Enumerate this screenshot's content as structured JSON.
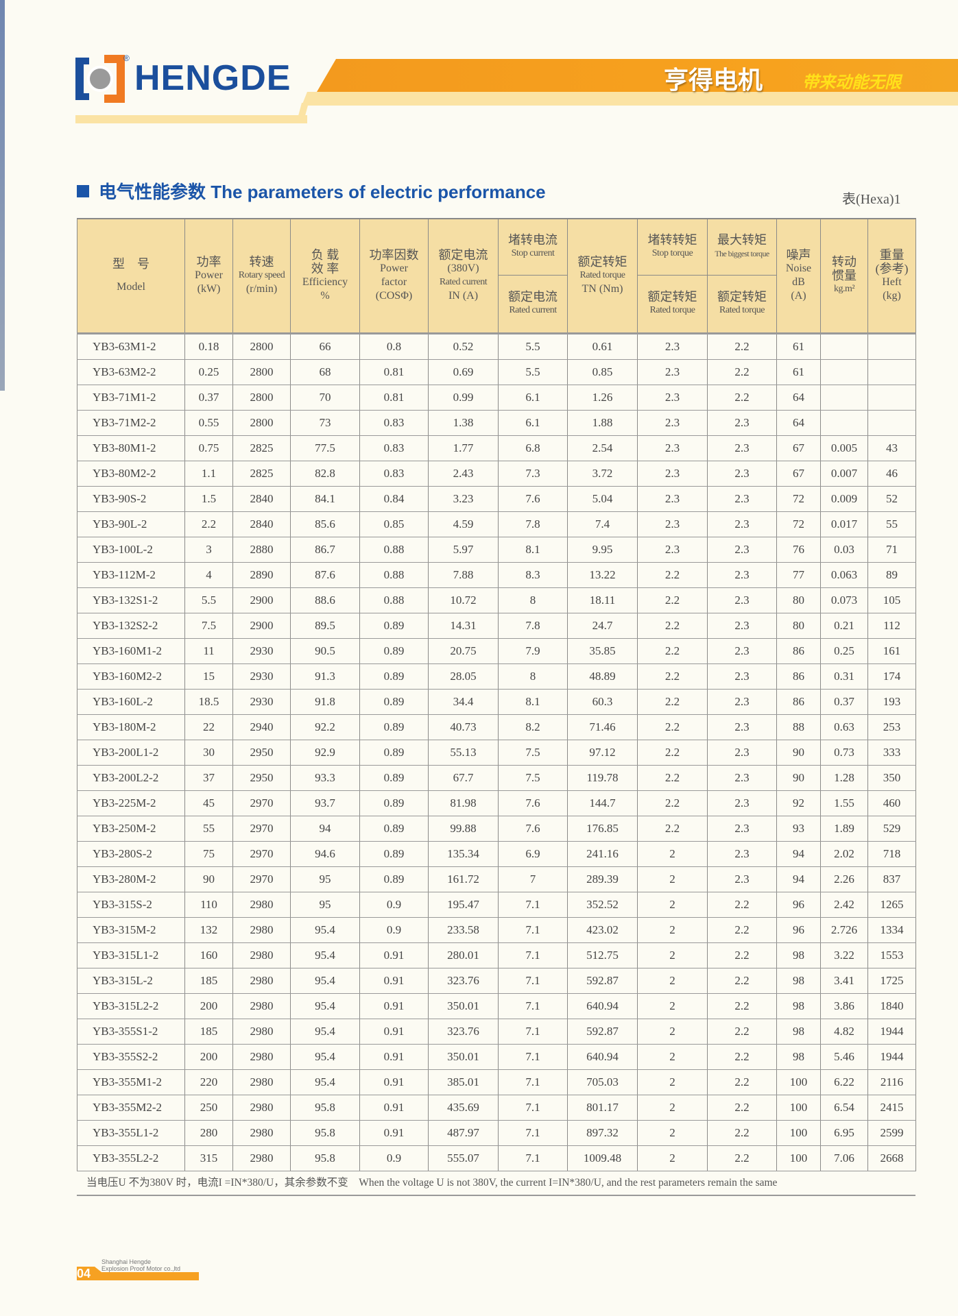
{
  "header": {
    "brand": "HENGDE",
    "registered": "®",
    "cn_brand": "亨得电机",
    "slogan": "带来动能无限",
    "colors": {
      "brand_blue": "#1b4f9c",
      "orange": "#f39a1e",
      "pale_yellow": "#fbe3a4",
      "header_fill": "#f5dea4"
    }
  },
  "section": {
    "title": "电气性能参数 The parameters of electric performance",
    "table_no": "表(Hexa)1"
  },
  "columns": {
    "model": {
      "cn": "型　号",
      "en": "Model"
    },
    "power": {
      "cn": "功率",
      "en": "Power",
      "unit": "(kW)"
    },
    "speed": {
      "cn": "转速",
      "en": "Rotary speed",
      "unit": "(r/min)"
    },
    "efficiency": {
      "cn1": "负 载",
      "cn2": "效 率",
      "en": "Efficiency",
      "unit": "%"
    },
    "pf": {
      "cn": "功率因数",
      "en1": "Power",
      "en2": "factor",
      "unit": "(COSΦ)"
    },
    "current": {
      "cn": "额定电流",
      "volt": "(380V)",
      "en": "Rated current",
      "unit": "IN (A)"
    },
    "stop_current": {
      "top_cn": "堵转电流",
      "top_en": "Stop current",
      "bot_cn": "额定电流",
      "bot_en": "Rated current"
    },
    "torque": {
      "cn": "额定转矩",
      "en": "Rated torque",
      "unit": "TN (Nm)"
    },
    "stop_torque": {
      "top_cn": "堵转转矩",
      "top_en": "Stop torque",
      "bot_cn": "额定转矩",
      "bot_en": "Rated torque"
    },
    "max_torque": {
      "top_cn": "最大转矩",
      "top_en": "The biggest torque",
      "bot_cn": "额定转矩",
      "bot_en": "Rated torque"
    },
    "noise": {
      "cn": "噪声",
      "en": "Noise",
      "unit1": "dB",
      "unit2": "(A)"
    },
    "inertia": {
      "cn1": "转动",
      "cn2": "惯量",
      "unit": "kg.m²"
    },
    "heft": {
      "cn1": "重量",
      "cn2": "(参考)",
      "en": "Heft",
      "unit": "(kg)"
    }
  },
  "rows": [
    [
      "YB3-63M1-2",
      "0.18",
      "2800",
      "66",
      "0.8",
      "0.52",
      "5.5",
      "0.61",
      "2.3",
      "2.2",
      "61",
      "",
      ""
    ],
    [
      "YB3-63M2-2",
      "0.25",
      "2800",
      "68",
      "0.81",
      "0.69",
      "5.5",
      "0.85",
      "2.3",
      "2.2",
      "61",
      "",
      ""
    ],
    [
      "YB3-71M1-2",
      "0.37",
      "2800",
      "70",
      "0.81",
      "0.99",
      "6.1",
      "1.26",
      "2.3",
      "2.2",
      "64",
      "",
      ""
    ],
    [
      "YB3-71M2-2",
      "0.55",
      "2800",
      "73",
      "0.83",
      "1.38",
      "6.1",
      "1.88",
      "2.3",
      "2.3",
      "64",
      "",
      ""
    ],
    [
      "YB3-80M1-2",
      "0.75",
      "2825",
      "77.5",
      "0.83",
      "1.77",
      "6.8",
      "2.54",
      "2.3",
      "2.3",
      "67",
      "0.005",
      "43"
    ],
    [
      "YB3-80M2-2",
      "1.1",
      "2825",
      "82.8",
      "0.83",
      "2.43",
      "7.3",
      "3.72",
      "2.3",
      "2.3",
      "67",
      "0.007",
      "46"
    ],
    [
      "YB3-90S-2",
      "1.5",
      "2840",
      "84.1",
      "0.84",
      "3.23",
      "7.6",
      "5.04",
      "2.3",
      "2.3",
      "72",
      "0.009",
      "52"
    ],
    [
      "YB3-90L-2",
      "2.2",
      "2840",
      "85.6",
      "0.85",
      "4.59",
      "7.8",
      "7.4",
      "2.3",
      "2.3",
      "72",
      "0.017",
      "55"
    ],
    [
      "YB3-100L-2",
      "3",
      "2880",
      "86.7",
      "0.88",
      "5.97",
      "8.1",
      "9.95",
      "2.3",
      "2.3",
      "76",
      "0.03",
      "71"
    ],
    [
      "YB3-112M-2",
      "4",
      "2890",
      "87.6",
      "0.88",
      "7.88",
      "8.3",
      "13.22",
      "2.2",
      "2.3",
      "77",
      "0.063",
      "89"
    ],
    [
      "YB3-132S1-2",
      "5.5",
      "2900",
      "88.6",
      "0.88",
      "10.72",
      "8",
      "18.11",
      "2.2",
      "2.3",
      "80",
      "0.073",
      "105"
    ],
    [
      "YB3-132S2-2",
      "7.5",
      "2900",
      "89.5",
      "0.89",
      "14.31",
      "7.8",
      "24.7",
      "2.2",
      "2.3",
      "80",
      "0.21",
      "112"
    ],
    [
      "YB3-160M1-2",
      "11",
      "2930",
      "90.5",
      "0.89",
      "20.75",
      "7.9",
      "35.85",
      "2.2",
      "2.3",
      "86",
      "0.25",
      "161"
    ],
    [
      "YB3-160M2-2",
      "15",
      "2930",
      "91.3",
      "0.89",
      "28.05",
      "8",
      "48.89",
      "2.2",
      "2.3",
      "86",
      "0.31",
      "174"
    ],
    [
      "YB3-160L-2",
      "18.5",
      "2930",
      "91.8",
      "0.89",
      "34.4",
      "8.1",
      "60.3",
      "2.2",
      "2.3",
      "86",
      "0.37",
      "193"
    ],
    [
      "YB3-180M-2",
      "22",
      "2940",
      "92.2",
      "0.89",
      "40.73",
      "8.2",
      "71.46",
      "2.2",
      "2.3",
      "88",
      "0.63",
      "253"
    ],
    [
      "YB3-200L1-2",
      "30",
      "2950",
      "92.9",
      "0.89",
      "55.13",
      "7.5",
      "97.12",
      "2.2",
      "2.3",
      "90",
      "0.73",
      "333"
    ],
    [
      "YB3-200L2-2",
      "37",
      "2950",
      "93.3",
      "0.89",
      "67.7",
      "7.5",
      "119.78",
      "2.2",
      "2.3",
      "90",
      "1.28",
      "350"
    ],
    [
      "YB3-225M-2",
      "45",
      "2970",
      "93.7",
      "0.89",
      "81.98",
      "7.6",
      "144.7",
      "2.2",
      "2.3",
      "92",
      "1.55",
      "460"
    ],
    [
      "YB3-250M-2",
      "55",
      "2970",
      "94",
      "0.89",
      "99.88",
      "7.6",
      "176.85",
      "2.2",
      "2.3",
      "93",
      "1.89",
      "529"
    ],
    [
      "YB3-280S-2",
      "75",
      "2970",
      "94.6",
      "0.89",
      "135.34",
      "6.9",
      "241.16",
      "2",
      "2.3",
      "94",
      "2.02",
      "718"
    ],
    [
      "YB3-280M-2",
      "90",
      "2970",
      "95",
      "0.89",
      "161.72",
      "7",
      "289.39",
      "2",
      "2.3",
      "94",
      "2.26",
      "837"
    ],
    [
      "YB3-315S-2",
      "110",
      "2980",
      "95",
      "0.9",
      "195.47",
      "7.1",
      "352.52",
      "2",
      "2.2",
      "96",
      "2.42",
      "1265"
    ],
    [
      "YB3-315M-2",
      "132",
      "2980",
      "95.4",
      "0.9",
      "233.58",
      "7.1",
      "423.02",
      "2",
      "2.2",
      "96",
      "2.726",
      "1334"
    ],
    [
      "YB3-315L1-2",
      "160",
      "2980",
      "95.4",
      "0.91",
      "280.01",
      "7.1",
      "512.75",
      "2",
      "2.2",
      "98",
      "3.22",
      "1553"
    ],
    [
      "YB3-315L-2",
      "185",
      "2980",
      "95.4",
      "0.91",
      "323.76",
      "7.1",
      "592.87",
      "2",
      "2.2",
      "98",
      "3.41",
      "1725"
    ],
    [
      "YB3-315L2-2",
      "200",
      "2980",
      "95.4",
      "0.91",
      "350.01",
      "7.1",
      "640.94",
      "2",
      "2.2",
      "98",
      "3.86",
      "1840"
    ],
    [
      "YB3-355S1-2",
      "185",
      "2980",
      "95.4",
      "0.91",
      "323.76",
      "7.1",
      "592.87",
      "2",
      "2.2",
      "98",
      "4.82",
      "1944"
    ],
    [
      "YB3-355S2-2",
      "200",
      "2980",
      "95.4",
      "0.91",
      "350.01",
      "7.1",
      "640.94",
      "2",
      "2.2",
      "98",
      "5.46",
      "1944"
    ],
    [
      "YB3-355M1-2",
      "220",
      "2980",
      "95.4",
      "0.91",
      "385.01",
      "7.1",
      "705.03",
      "2",
      "2.2",
      "100",
      "6.22",
      "2116"
    ],
    [
      "YB3-355M2-2",
      "250",
      "2980",
      "95.8",
      "0.91",
      "435.69",
      "7.1",
      "801.17",
      "2",
      "2.2",
      "100",
      "6.54",
      "2415"
    ],
    [
      "YB3-355L1-2",
      "280",
      "2980",
      "95.8",
      "0.91",
      "487.97",
      "7.1",
      "897.32",
      "2",
      "2.2",
      "100",
      "6.95",
      "2599"
    ],
    [
      "YB3-355L2-2",
      "315",
      "2980",
      "95.8",
      "0.9",
      "555.07",
      "7.1",
      "1009.48",
      "2",
      "2.2",
      "100",
      "7.06",
      "2668"
    ]
  ],
  "note": "当电压U 不为380V 时，电流I =IN*380/U，其余参数不变　When the voltage U is not 380V, the current I=IN*380/U, and the rest parameters remain the same",
  "footer": {
    "page": "04",
    "company_line1": "Shanghai Hengde",
    "company_line2": "Explosion Proof Motor co.,ltd"
  }
}
